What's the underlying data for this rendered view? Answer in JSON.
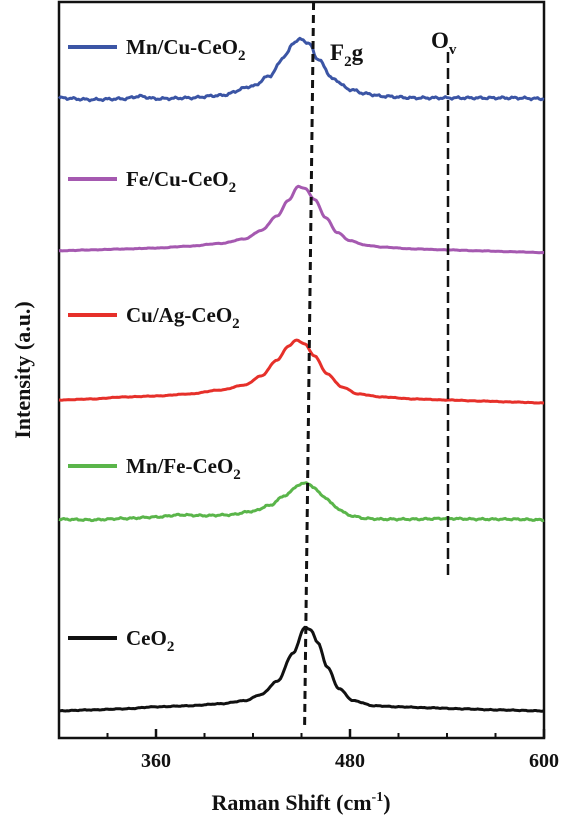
{
  "chart_data": {
    "type": "line",
    "xlabel": "Raman Shift (cm",
    "xlabel_sup": "-1",
    "xlabel_end": ")",
    "ylabel": "Intensity (a.u.)",
    "xlim": [
      300,
      600
    ],
    "x_ticks": [
      360,
      480,
      600
    ],
    "x_tick_labels": [
      "360",
      "480",
      "600"
    ],
    "grid": false,
    "legend": "inline-left",
    "annotations": [
      {
        "name": "f2g",
        "text": "F",
        "sub": "2",
        "text_end": "g",
        "x": 455
      },
      {
        "name": "ov",
        "text": "O",
        "sub": "v",
        "text_end": "",
        "x": 540
      }
    ],
    "series": [
      {
        "key": "mncu",
        "legend_main": "Mn/Cu-CeO",
        "legend_sub": "2",
        "color": "#3b55a5",
        "noise": 1.6,
        "points": [
          [
            300,
            12
          ],
          [
            320,
            10
          ],
          [
            340,
            11
          ],
          [
            350,
            14
          ],
          [
            360,
            11
          ],
          [
            380,
            12
          ],
          [
            400,
            15
          ],
          [
            420,
            26
          ],
          [
            430,
            38
          ],
          [
            440,
            62
          ],
          [
            445,
            78
          ],
          [
            450,
            82
          ],
          [
            455,
            76
          ],
          [
            460,
            58
          ],
          [
            470,
            34
          ],
          [
            480,
            22
          ],
          [
            490,
            17
          ],
          [
            500,
            14
          ],
          [
            520,
            12
          ],
          [
            540,
            12
          ],
          [
            560,
            12
          ],
          [
            580,
            12
          ],
          [
            600,
            11
          ]
        ]
      },
      {
        "key": "fecu",
        "legend_main": "Fe/Cu-CeO",
        "legend_sub": "2",
        "color": "#a559b0",
        "noise": 0.3,
        "points": [
          [
            300,
            10
          ],
          [
            320,
            11
          ],
          [
            340,
            12
          ],
          [
            360,
            13
          ],
          [
            380,
            15
          ],
          [
            400,
            18
          ],
          [
            415,
            23
          ],
          [
            425,
            32
          ],
          [
            435,
            48
          ],
          [
            442,
            65
          ],
          [
            448,
            80
          ],
          [
            452,
            78
          ],
          [
            458,
            66
          ],
          [
            465,
            46
          ],
          [
            472,
            30
          ],
          [
            480,
            21
          ],
          [
            490,
            16
          ],
          [
            500,
            14
          ],
          [
            520,
            12
          ],
          [
            540,
            11
          ],
          [
            560,
            10
          ],
          [
            580,
            9
          ],
          [
            600,
            8
          ]
        ]
      },
      {
        "key": "cuag",
        "legend_main": "Cu/Ag-CeO",
        "legend_sub": "2",
        "color": "#e6302a",
        "noise": 0.3,
        "points": [
          [
            300,
            12
          ],
          [
            320,
            13
          ],
          [
            340,
            15
          ],
          [
            360,
            16
          ],
          [
            380,
            18
          ],
          [
            400,
            22
          ],
          [
            415,
            27
          ],
          [
            425,
            36
          ],
          [
            435,
            52
          ],
          [
            442,
            66
          ],
          [
            447,
            72
          ],
          [
            452,
            68
          ],
          [
            458,
            56
          ],
          [
            466,
            38
          ],
          [
            475,
            25
          ],
          [
            485,
            18
          ],
          [
            500,
            15
          ],
          [
            520,
            13
          ],
          [
            540,
            12
          ],
          [
            560,
            11
          ],
          [
            580,
            10
          ],
          [
            600,
            9
          ]
        ]
      },
      {
        "key": "mnfe",
        "legend_main": "Mn/Fe-CeO",
        "legend_sub": "2",
        "color": "#5ab54a",
        "noise": 1.3,
        "points": [
          [
            300,
            15
          ],
          [
            320,
            14
          ],
          [
            340,
            16
          ],
          [
            360,
            18
          ],
          [
            375,
            21
          ],
          [
            390,
            20
          ],
          [
            405,
            21
          ],
          [
            420,
            26
          ],
          [
            430,
            34
          ],
          [
            440,
            48
          ],
          [
            448,
            62
          ],
          [
            453,
            66
          ],
          [
            458,
            58
          ],
          [
            465,
            44
          ],
          [
            473,
            29
          ],
          [
            480,
            20
          ],
          [
            490,
            16
          ],
          [
            500,
            15
          ],
          [
            520,
            15
          ],
          [
            540,
            16
          ],
          [
            560,
            15
          ],
          [
            580,
            15
          ],
          [
            600,
            14
          ]
        ]
      },
      {
        "key": "ceo2",
        "legend_main": "CeO",
        "legend_sub": "2",
        "color": "#111111",
        "noise": 0.4,
        "points": [
          [
            300,
            5
          ],
          [
            320,
            6
          ],
          [
            340,
            7
          ],
          [
            360,
            9
          ],
          [
            380,
            10
          ],
          [
            400,
            12
          ],
          [
            415,
            15
          ],
          [
            425,
            21
          ],
          [
            435,
            34
          ],
          [
            445,
            62
          ],
          [
            452,
            87
          ],
          [
            456,
            84
          ],
          [
            460,
            72
          ],
          [
            466,
            48
          ],
          [
            473,
            27
          ],
          [
            482,
            15
          ],
          [
            495,
            10
          ],
          [
            510,
            9
          ],
          [
            530,
            8
          ],
          [
            550,
            7
          ],
          [
            570,
            6
          ],
          [
            600,
            5
          ]
        ]
      }
    ]
  }
}
